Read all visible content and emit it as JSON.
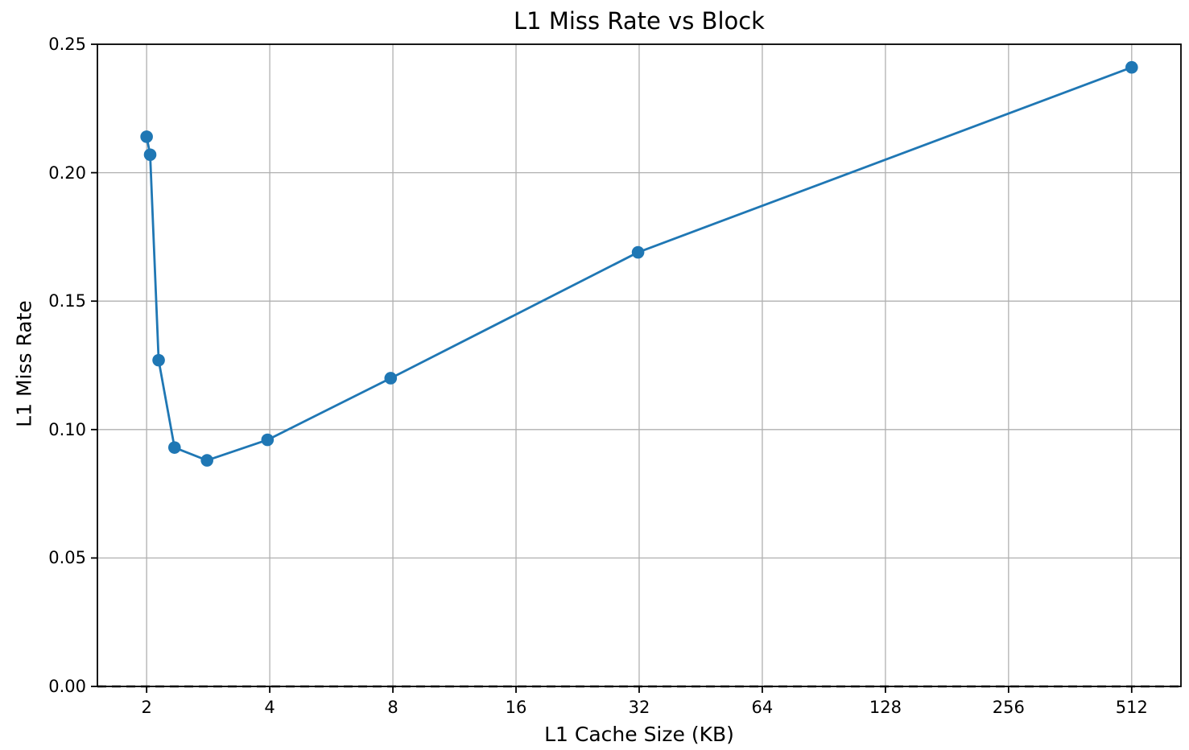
{
  "figure": {
    "background": "#ffffff"
  },
  "chart_data": {
    "type": "line",
    "title": "L1 Miss Rate vs Block",
    "xlabel": "L1 Cache Size (KB)",
    "ylabel": "L1 Miss Rate",
    "x_scale": "log2",
    "xlim": [
      1.516,
      675.6
    ],
    "ylim": [
      0.0,
      0.25
    ],
    "x_ticks": [
      2,
      4,
      8,
      16,
      32,
      64,
      128,
      256,
      512
    ],
    "y_ticks": [
      0.0,
      0.05,
      0.1,
      0.15,
      0.2,
      0.25
    ],
    "y_tick_decimals": 2,
    "grid": true,
    "grid_color": "#b0b0b0",
    "axis_color": "#000000",
    "legend": "none",
    "series": [
      {
        "name": "L1 miss rate",
        "x": [
          2.0,
          2.04,
          2.14,
          2.34,
          2.81,
          3.95,
          7.9,
          31.8,
          512
        ],
        "y": [
          0.214,
          0.207,
          0.127,
          0.093,
          0.088,
          0.096,
          0.12,
          0.169,
          0.241
        ],
        "color": "#1f77b4",
        "marker": "circle",
        "marker_size": 7.8,
        "line_width": 2.8
      }
    ],
    "reference_lines": [
      {
        "axis": "y",
        "value": 0.0,
        "style": "dashed",
        "color": "#000000",
        "dash": [
          11,
          7
        ],
        "line_width": 2.6
      }
    ]
  }
}
